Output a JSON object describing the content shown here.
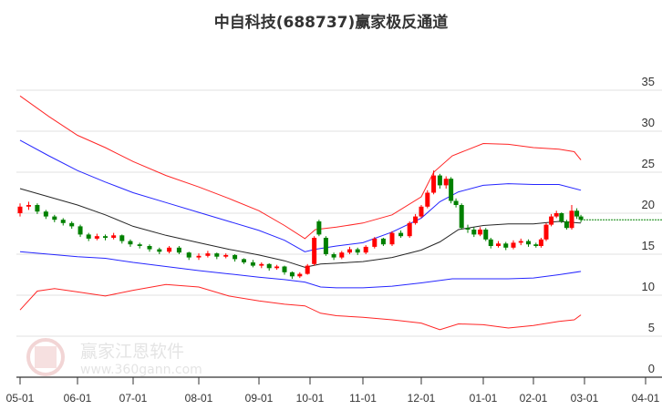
{
  "chart_data": {
    "type": "candlestick",
    "title": "中自科技(688737)赢家极反通道",
    "xlabel": "",
    "ylabel": "",
    "ylim": [
      0,
      35
    ],
    "yticks": [
      0,
      5,
      10,
      15,
      20,
      25,
      30,
      35
    ],
    "xtick_labels": [
      "05-01",
      "06-01",
      "07-01",
      "08-01",
      "09-01",
      "10-01",
      "11-01",
      "12-01",
      "01-01",
      "02-01",
      "03-01",
      "04-01"
    ],
    "grid": true,
    "colors": {
      "up": "#ff0000",
      "down": "#008000",
      "outer_band": "#ff0000",
      "inner_band": "#0000ff",
      "middle": "#000000",
      "last_price_line": "#008000"
    },
    "candles_note": "t = months since 05-01; [t, open, close, high, low]",
    "candles": [
      [
        0.0,
        20.0,
        20.8,
        21.2,
        19.6
      ],
      [
        0.15,
        20.8,
        21.0,
        21.4,
        20.4
      ],
      [
        0.3,
        21.0,
        20.2,
        21.2,
        19.9
      ],
      [
        0.45,
        20.2,
        19.6,
        20.4,
        19.3
      ],
      [
        0.6,
        19.6,
        19.2,
        19.8,
        18.9
      ],
      [
        0.75,
        19.2,
        18.8,
        19.4,
        18.5
      ],
      [
        0.9,
        18.8,
        18.4,
        19.0,
        18.1
      ],
      [
        1.05,
        18.4,
        17.4,
        18.6,
        17.1
      ],
      [
        1.2,
        17.4,
        16.9,
        17.6,
        16.6
      ],
      [
        1.35,
        16.9,
        17.2,
        17.5,
        16.7
      ],
      [
        1.5,
        17.2,
        17.0,
        17.4,
        16.7
      ],
      [
        1.65,
        17.0,
        17.3,
        17.6,
        16.8
      ],
      [
        1.8,
        17.3,
        16.6,
        17.4,
        16.3
      ],
      [
        1.95,
        16.6,
        16.2,
        16.8,
        15.9
      ],
      [
        2.1,
        16.2,
        16.0,
        16.4,
        15.7
      ],
      [
        2.25,
        16.0,
        15.6,
        16.2,
        15.3
      ],
      [
        2.4,
        15.6,
        15.3,
        15.8,
        15.0
      ],
      [
        2.55,
        15.3,
        15.8,
        16.0,
        15.1
      ],
      [
        2.7,
        15.8,
        15.2,
        16.0,
        15.0
      ],
      [
        2.85,
        15.2,
        14.6,
        15.3,
        14.3
      ],
      [
        3.0,
        14.6,
        14.8,
        15.1,
        14.3
      ],
      [
        3.15,
        14.8,
        15.1,
        15.4,
        14.6
      ],
      [
        3.3,
        15.1,
        14.7,
        15.2,
        14.4
      ],
      [
        3.45,
        14.7,
        14.9,
        15.1,
        14.5
      ],
      [
        3.6,
        14.9,
        14.4,
        15.0,
        14.1
      ],
      [
        3.75,
        14.4,
        14.0,
        14.5,
        13.8
      ],
      [
        3.9,
        14.0,
        13.6,
        14.3,
        13.4
      ],
      [
        4.05,
        13.6,
        13.8,
        14.0,
        13.3
      ],
      [
        4.2,
        13.8,
        13.3,
        13.9,
        13.0
      ],
      [
        4.35,
        13.3,
        13.5,
        13.7,
        13.1
      ],
      [
        4.5,
        13.5,
        12.8,
        13.6,
        12.5
      ],
      [
        4.65,
        12.8,
        12.3,
        12.9,
        12.0
      ],
      [
        4.8,
        12.3,
        12.6,
        12.8,
        12.1
      ],
      [
        4.95,
        12.6,
        13.6,
        13.8,
        12.5
      ],
      [
        5.08,
        13.8,
        17.0,
        17.2,
        13.6
      ],
      [
        5.17,
        19.0,
        17.4,
        19.2,
        17.2
      ],
      [
        5.3,
        17.0,
        15.0,
        17.2,
        14.8
      ],
      [
        5.45,
        15.0,
        14.6,
        15.2,
        14.3
      ],
      [
        5.6,
        14.6,
        15.2,
        15.4,
        14.4
      ],
      [
        5.75,
        15.2,
        15.6,
        15.9,
        15.0
      ],
      [
        5.9,
        15.6,
        15.2,
        15.8,
        14.9
      ],
      [
        6.05,
        15.2,
        15.9,
        16.1,
        15.0
      ],
      [
        6.2,
        15.9,
        16.9,
        17.1,
        15.7
      ],
      [
        6.35,
        16.9,
        16.2,
        17.0,
        16.0
      ],
      [
        6.5,
        16.2,
        17.6,
        17.8,
        16.0
      ],
      [
        6.65,
        17.6,
        17.2,
        17.9,
        17.0
      ],
      [
        6.8,
        17.2,
        18.8,
        19.0,
        17.0
      ],
      [
        6.9,
        18.8,
        19.6,
        19.9,
        18.6
      ],
      [
        7.0,
        19.6,
        20.8,
        21.0,
        19.4
      ],
      [
        7.1,
        20.8,
        22.5,
        22.8,
        20.6
      ],
      [
        7.2,
        22.5,
        24.6,
        25.2,
        22.3
      ],
      [
        7.3,
        24.6,
        23.4,
        24.8,
        23.0
      ],
      [
        7.4,
        23.4,
        24.2,
        24.5,
        23.0
      ],
      [
        7.48,
        24.2,
        21.5,
        24.4,
        21.2
      ],
      [
        7.56,
        21.5,
        21.0,
        21.8,
        20.7
      ],
      [
        7.65,
        21.0,
        18.2,
        21.2,
        18.0
      ],
      [
        7.75,
        18.2,
        18.0,
        18.6,
        17.6
      ],
      [
        7.85,
        18.0,
        17.4,
        18.3,
        17.1
      ],
      [
        7.95,
        17.4,
        18.0,
        18.3,
        17.2
      ],
      [
        8.05,
        18.0,
        16.8,
        18.2,
        16.6
      ],
      [
        8.15,
        16.8,
        16.0,
        17.0,
        15.7
      ],
      [
        8.3,
        16.0,
        16.3,
        16.6,
        15.8
      ],
      [
        8.45,
        16.3,
        15.8,
        16.5,
        15.5
      ],
      [
        8.6,
        15.8,
        16.4,
        16.7,
        15.6
      ],
      [
        8.75,
        16.4,
        16.6,
        16.9,
        16.1
      ],
      [
        8.9,
        16.6,
        16.2,
        16.8,
        15.9
      ],
      [
        9.05,
        16.2,
        16.0,
        16.4,
        15.8
      ],
      [
        9.15,
        16.0,
        16.8,
        17.0,
        15.8
      ],
      [
        9.25,
        16.8,
        18.6,
        18.8,
        16.6
      ],
      [
        9.35,
        18.6,
        19.6,
        19.9,
        18.4
      ],
      [
        9.45,
        19.6,
        20.0,
        20.3,
        19.4
      ],
      [
        9.55,
        20.0,
        19.0,
        20.1,
        18.8
      ],
      [
        9.65,
        19.0,
        18.2,
        19.2,
        18.0
      ],
      [
        9.75,
        18.2,
        20.3,
        21.0,
        18.0
      ],
      [
        9.85,
        20.3,
        19.6,
        20.6,
        19.3
      ],
      [
        9.93,
        19.6,
        19.2,
        19.8,
        18.9
      ]
    ],
    "last_close": 19.2,
    "series": [
      {
        "name": "upper_outer",
        "color": "#ff0000",
        "t": [
          0,
          0.5,
          1,
          1.5,
          2,
          2.5,
          3,
          3.5,
          4,
          4.5,
          4.9,
          5.1,
          5.5,
          6,
          6.5,
          7,
          7.2,
          7.5,
          8,
          8.5,
          9,
          9.5,
          9.8,
          9.93
        ],
        "values": [
          34.3,
          31.8,
          29.5,
          28,
          26.3,
          24.6,
          23.2,
          21.8,
          20.3,
          18.5,
          16.9,
          18.0,
          18.3,
          18.8,
          19.8,
          22,
          25,
          27,
          28.5,
          28.4,
          28,
          27.8,
          27.5,
          26.5
        ]
      },
      {
        "name": "upper_inner",
        "color": "#0000ff",
        "t": [
          0,
          0.5,
          1,
          1.5,
          2,
          2.5,
          3,
          3.5,
          4,
          4.5,
          4.9,
          5.1,
          5.5,
          6,
          6.5,
          7,
          7.3,
          7.6,
          8,
          8.5,
          9,
          9.5,
          9.93
        ],
        "values": [
          28.9,
          27,
          25.2,
          23.8,
          22.5,
          21.3,
          20.1,
          19,
          17.9,
          16.7,
          15.3,
          15.6,
          16.0,
          16.4,
          17.7,
          19.4,
          21.4,
          22.6,
          23.4,
          23.6,
          23.5,
          23.5,
          22.8
        ]
      },
      {
        "name": "middle",
        "color": "#000000",
        "t": [
          0,
          0.5,
          1,
          1.5,
          2,
          2.5,
          3,
          3.5,
          4,
          4.5,
          4.9,
          5.2,
          5.5,
          6,
          6.5,
          7,
          7.3,
          7.6,
          8,
          8.5,
          9,
          9.5,
          9.93
        ],
        "values": [
          23,
          22,
          21,
          19.8,
          18.4,
          17.3,
          16.4,
          15.6,
          14.9,
          14.2,
          13.4,
          13.8,
          13.9,
          14.1,
          14.6,
          15.5,
          16.5,
          18.0,
          18.5,
          18.7,
          18.7,
          19.0,
          18.8
        ]
      },
      {
        "name": "lower_inner",
        "color": "#0000ff",
        "t": [
          0,
          0.5,
          1,
          1.5,
          2,
          2.5,
          3,
          3.5,
          4,
          4.5,
          4.9,
          5.2,
          5.5,
          6,
          6.5,
          7,
          7.5,
          8,
          8.5,
          9,
          9.5,
          9.93
        ],
        "values": [
          15.3,
          15.0,
          14.7,
          14.5,
          14.0,
          13.5,
          13.0,
          12.6,
          12.2,
          11.9,
          11.6,
          11.0,
          10.9,
          10.9,
          11.1,
          11.5,
          12.0,
          12.0,
          12.0,
          12.1,
          12.5,
          12.9
        ]
      },
      {
        "name": "lower_outer",
        "color": "#ff0000",
        "t": [
          0,
          0.3,
          0.6,
          1,
          1.5,
          2,
          2.5,
          3,
          3.5,
          4,
          4.5,
          4.9,
          5.2,
          5.5,
          6,
          6.5,
          7,
          7.3,
          7.6,
          8,
          8.5,
          9,
          9.5,
          9.8,
          9.93
        ],
        "values": [
          8.2,
          10.5,
          10.8,
          10.4,
          9.9,
          10.6,
          11.3,
          11.0,
          9.9,
          9.3,
          8.9,
          8.7,
          7.8,
          7.5,
          7.3,
          7.0,
          6.6,
          5.8,
          6.5,
          6.4,
          6.0,
          6.3,
          6.8,
          7.0,
          7.6
        ]
      }
    ]
  },
  "watermark": {
    "brand": "赢家江恩软件",
    "url": "www.360gann.com",
    "seal": [
      "江",
      "赢",
      "恩",
      "家"
    ]
  }
}
